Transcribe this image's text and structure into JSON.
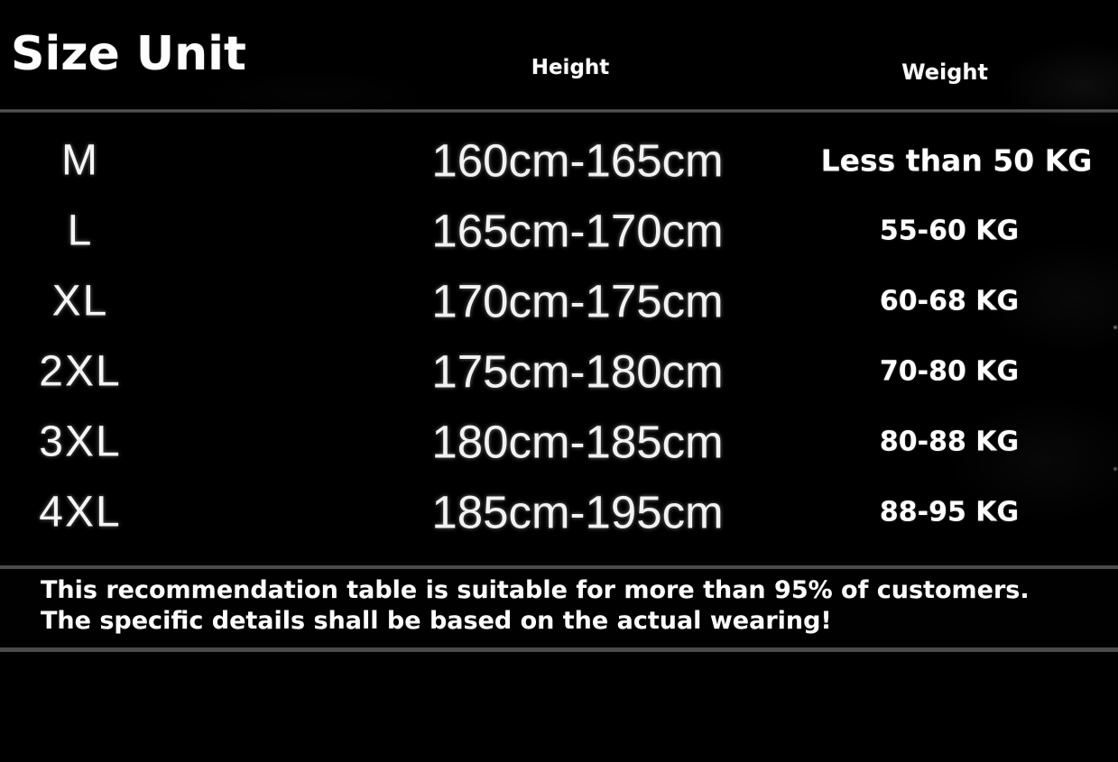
{
  "header": {
    "title": "Size Unit",
    "height_label": "Height",
    "weight_label": "Weight"
  },
  "footer": {
    "lines": [
      "This recommendation table is suitable for more than 95% of customers.",
      "The specific details shall be based on the actual wearing!"
    ]
  },
  "colors": {
    "background": "#000000",
    "text": "#ffffff",
    "divider": "#4a4a4a"
  },
  "chart_data": {
    "type": "table",
    "title": "Size Unit",
    "column_headers": [
      "",
      "Height",
      "Weight"
    ],
    "rows": [
      {
        "size": "M",
        "height": "160cm-165cm",
        "weight": "Less than 50 KG"
      },
      {
        "size": "L",
        "height": "165cm-170cm",
        "weight": "55-60 KG"
      },
      {
        "size": "XL",
        "height": "170cm-175cm",
        "weight": "60-68 KG"
      },
      {
        "size": "2XL",
        "height": "175cm-180cm",
        "weight": "70-80 KG"
      },
      {
        "size": "3XL",
        "height": "180cm-185cm",
        "weight": "80-88 KG"
      },
      {
        "size": "4XL",
        "height": "185cm-195cm",
        "weight": "88-95 KG"
      }
    ]
  }
}
